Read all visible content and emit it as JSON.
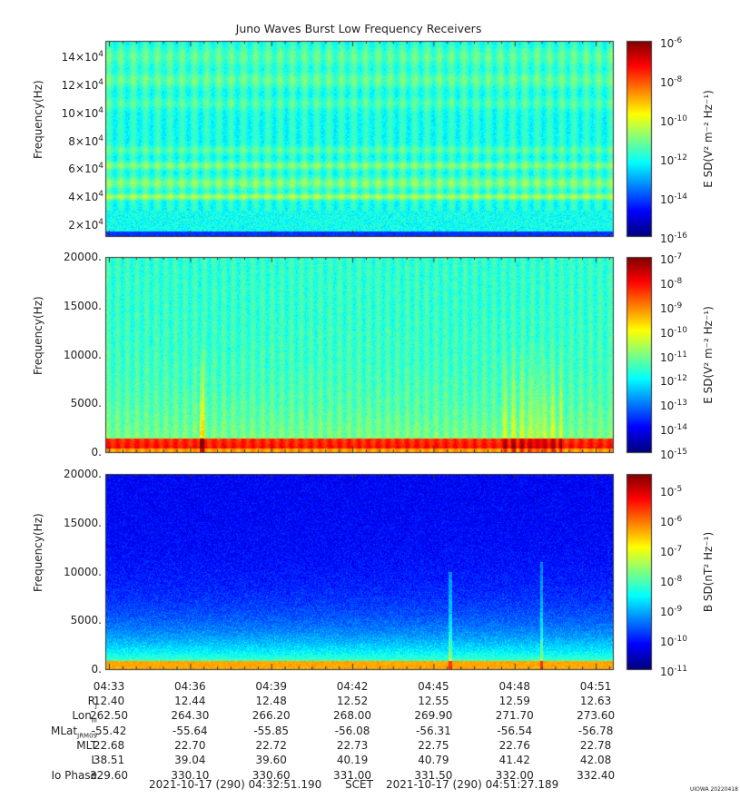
{
  "title": "Juno Waves Burst Low Frequency Receivers",
  "colors": {
    "spectrogram_cmap": "jet",
    "background": "#ffffff"
  },
  "chart_data": [
    {
      "type": "heatmap",
      "panel": "top",
      "ylabel": "Frequency(Hz)",
      "y_ticks": [
        {
          "base": "2×10",
          "exp": "4",
          "value": 20000
        },
        {
          "base": "4×10",
          "exp": "4",
          "value": 40000
        },
        {
          "base": "6×10",
          "exp": "4",
          "value": 60000
        },
        {
          "base": "8×10",
          "exp": "4",
          "value": 80000
        },
        {
          "base": "10×10",
          "exp": "4",
          "value": 100000
        },
        {
          "base": "12×10",
          "exp": "4",
          "value": 120000
        },
        {
          "base": "14×10",
          "exp": "4",
          "value": 140000
        }
      ],
      "ylim": [
        10000,
        150000
      ],
      "colorbar_label": "E SD(V² m⁻² Hz⁻¹)",
      "colorbar_ticks": [
        {
          "base": "10",
          "exp": "-6"
        },
        {
          "base": "10",
          "exp": "-8"
        },
        {
          "base": "10",
          "exp": "-10"
        },
        {
          "base": "10",
          "exp": "-12"
        },
        {
          "base": "10",
          "exp": "-14"
        },
        {
          "base": "10",
          "exp": "-16"
        }
      ],
      "colorbar_range_log10": [
        -16,
        -6
      ],
      "scale": "log"
    },
    {
      "type": "heatmap",
      "panel": "middle",
      "ylabel": "Frequency(Hz)",
      "y_ticks": [
        "0.",
        "5000.",
        "10000.",
        "15000.",
        "20000."
      ],
      "ylim": [
        0,
        20000
      ],
      "colorbar_label": "E SD(V² m⁻² Hz⁻¹)",
      "colorbar_ticks": [
        {
          "base": "10",
          "exp": "-7"
        },
        {
          "base": "10",
          "exp": "-8"
        },
        {
          "base": "10",
          "exp": "-9"
        },
        {
          "base": "10",
          "exp": "-10"
        },
        {
          "base": "10",
          "exp": "-11"
        },
        {
          "base": "10",
          "exp": "-12"
        },
        {
          "base": "10",
          "exp": "-13"
        },
        {
          "base": "10",
          "exp": "-14"
        },
        {
          "base": "10",
          "exp": "-15"
        }
      ],
      "colorbar_range_log10": [
        -15,
        -7
      ],
      "scale": "log"
    },
    {
      "type": "heatmap",
      "panel": "bottom",
      "ylabel": "Frequency(Hz)",
      "y_ticks": [
        "0.",
        "5000.",
        "10000.",
        "15000.",
        "20000."
      ],
      "ylim": [
        0,
        20000
      ],
      "colorbar_label": "B SD(nT² Hz⁻¹)",
      "colorbar_ticks": [
        {
          "base": "10",
          "exp": "-5"
        },
        {
          "base": "10",
          "exp": "-6"
        },
        {
          "base": "10",
          "exp": "-7"
        },
        {
          "base": "10",
          "exp": "-8"
        },
        {
          "base": "10",
          "exp": "-9"
        },
        {
          "base": "10",
          "exp": "-10"
        },
        {
          "base": "10",
          "exp": "-11"
        }
      ],
      "colorbar_range_log10": [
        -11,
        -4.5
      ],
      "scale": "log"
    }
  ],
  "ephemeris": {
    "times": [
      "04:33",
      "04:36",
      "04:39",
      "04:42",
      "04:45",
      "04:48",
      "04:51"
    ],
    "rows": [
      {
        "label": "R",
        "sub": "J",
        "values": [
          "12.40",
          "12.44",
          "12.48",
          "12.52",
          "12.55",
          "12.59",
          "12.63"
        ]
      },
      {
        "label": "Lon",
        "sub": "III",
        "values": [
          "262.50",
          "264.30",
          "266.20",
          "268.00",
          "269.90",
          "271.70",
          "273.60"
        ]
      },
      {
        "label": "MLat",
        "sub": "JRM09",
        "values": [
          "-55.42",
          "-55.64",
          "-55.85",
          "-56.08",
          "-56.31",
          "-56.54",
          "-56.78"
        ]
      },
      {
        "label": "MLT",
        "sub": "",
        "values": [
          "22.68",
          "22.70",
          "22.72",
          "22.73",
          "22.75",
          "22.76",
          "22.78"
        ]
      },
      {
        "label": "L",
        "sub": "",
        "values": [
          "38.51",
          "39.04",
          "39.60",
          "40.19",
          "40.79",
          "41.42",
          "42.08"
        ]
      },
      {
        "label": "Io Phase",
        "sub": "",
        "values": [
          "329.60",
          "330.10",
          "330.60",
          "331.00",
          "331.50",
          "332.00",
          "332.40"
        ]
      }
    ]
  },
  "footer": {
    "start": "2021-10-17 (290) 04:32:51.190",
    "scet": "SCET",
    "end": "2021-10-17 (290) 04:51:27.189"
  },
  "stamp": "UIOWA 20220418"
}
